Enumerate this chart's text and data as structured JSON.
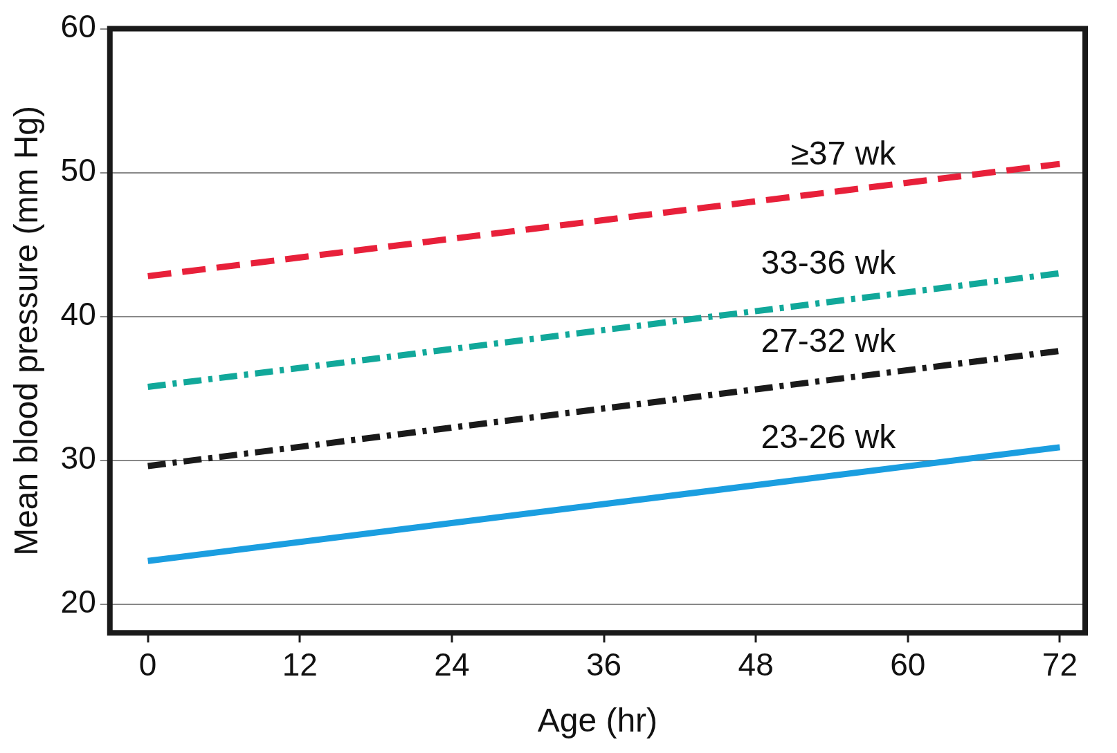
{
  "chart_data": {
    "type": "line",
    "xlabel": "Age (hr)",
    "ylabel": "Mean blood pressure (mm Hg)",
    "x": [
      0,
      72
    ],
    "xlim": [
      -3,
      74
    ],
    "xticks": [
      0,
      12,
      24,
      36,
      48,
      60,
      72
    ],
    "ylim": [
      18,
      60
    ],
    "yticks": [
      20,
      30,
      40,
      50,
      60
    ],
    "grid": "y",
    "legend": false,
    "marker": "none",
    "series": [
      {
        "name": "≥37 wk",
        "color": "#e8203a",
        "line_style": "dashed",
        "values": [
          42.8,
          50.6
        ]
      },
      {
        "name": "33-36 wk",
        "color": "#11a89a",
        "line_style": "dashdot",
        "values": [
          35.1,
          43.0
        ]
      },
      {
        "name": "27-32 wk",
        "color": "#1a1a1a",
        "line_style": "dashdot",
        "values": [
          29.6,
          37.6
        ]
      },
      {
        "name": "23-26 wk",
        "color": "#1b9ee0",
        "line_style": "solid",
        "values": [
          23.0,
          30.9
        ]
      }
    ]
  }
}
